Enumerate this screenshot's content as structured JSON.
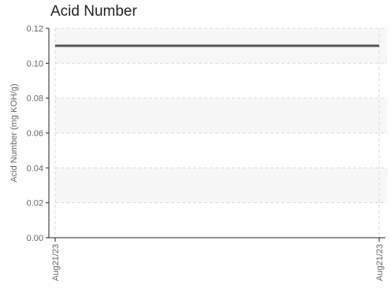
{
  "chart_data": {
    "type": "line",
    "title": "Acid Number",
    "xlabel": "",
    "ylabel": "Acid Number (mg KOH/g)",
    "x": [
      "Aug21/23",
      "Aug21/23"
    ],
    "series": [
      {
        "values": [
          0.11,
          0.11
        ],
        "color": "#555555"
      }
    ],
    "ylim": [
      0,
      0.12
    ],
    "yticks": [
      "0.00",
      "0.02",
      "0.04",
      "0.06",
      "0.08",
      "0.10",
      "0.12"
    ],
    "grid": true,
    "legend": "none",
    "colors": {
      "band": "#f7f7f7",
      "grid": "#d9d9d9",
      "axis": "#222222",
      "text": "#666666"
    }
  }
}
